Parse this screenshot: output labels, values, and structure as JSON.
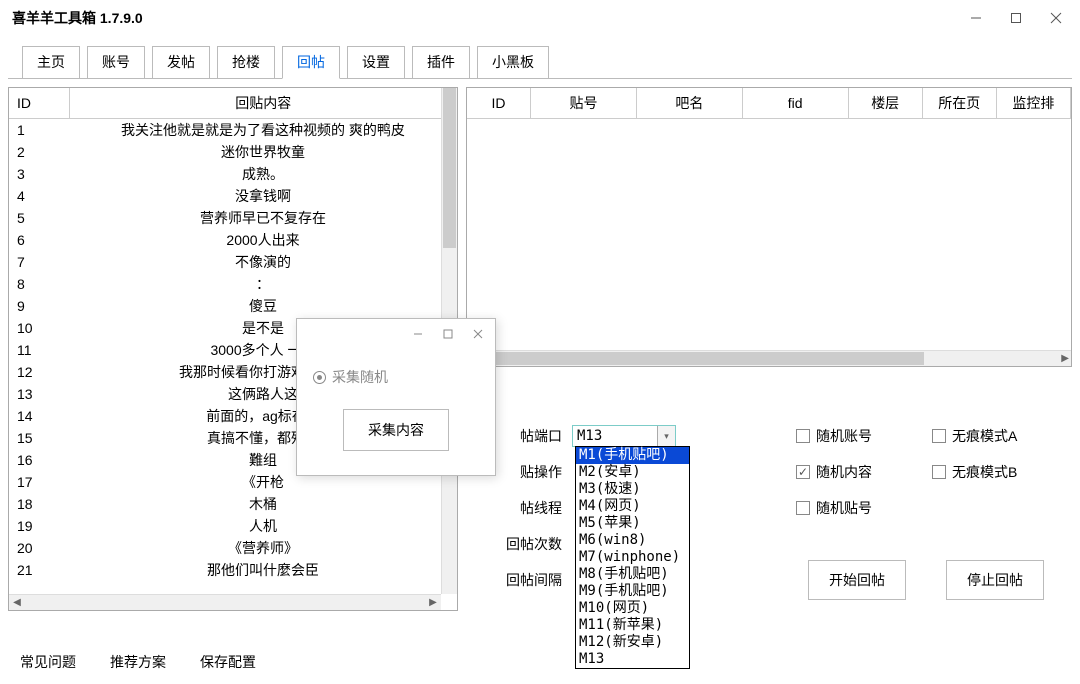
{
  "window": {
    "title": "喜羊羊工具箱 1.7.9.0"
  },
  "tabs": {
    "items": [
      {
        "label": "主页"
      },
      {
        "label": "账号"
      },
      {
        "label": "发帖"
      },
      {
        "label": "抢楼"
      },
      {
        "label": "回帖"
      },
      {
        "label": "设置"
      },
      {
        "label": "插件"
      },
      {
        "label": "小黑板"
      }
    ],
    "active_index": 4
  },
  "left_table": {
    "headers": {
      "id": "ID",
      "content": "回贴内容"
    },
    "rows": [
      {
        "id": "1",
        "content": "我关注他就是就是为了看这种视频的 爽的鸭皮"
      },
      {
        "id": "2",
        "content": "迷你世界牧童"
      },
      {
        "id": "3",
        "content": "成熟。"
      },
      {
        "id": "4",
        "content": "没拿钱啊"
      },
      {
        "id": "5",
        "content": "营养师早已不复存在"
      },
      {
        "id": "6",
        "content": "2000人出来"
      },
      {
        "id": "7",
        "content": "不像演的"
      },
      {
        "id": "8",
        "content": "："
      },
      {
        "id": "9",
        "content": "傻豆"
      },
      {
        "id": "10",
        "content": "是不是"
      },
      {
        "id": "11",
        "content": "3000多个人 一个"
      },
      {
        "id": "12",
        "content": "我那时候看你打游戏，一把"
      },
      {
        "id": "13",
        "content": "这俩路人这"
      },
      {
        "id": "14",
        "content": "前面的，ag标在赛"
      },
      {
        "id": "15",
        "content": "真搞不懂，都歼灭"
      },
      {
        "id": "16",
        "content": "難组"
      },
      {
        "id": "17",
        "content": "《开枪"
      },
      {
        "id": "18",
        "content": "木桶"
      },
      {
        "id": "19",
        "content": "人机"
      },
      {
        "id": "20",
        "content": "《营养师》"
      },
      {
        "id": "21",
        "content": "那他们叫什麼会臣"
      }
    ]
  },
  "right_table": {
    "headers": [
      "ID",
      "贴号",
      "吧名",
      "fid",
      "楼层",
      "所在页",
      "监控排"
    ]
  },
  "popup": {
    "radio_label": "采集随机",
    "button_label": "采集内容"
  },
  "form": {
    "labels": {
      "port": "帖端口",
      "op": "贴操作",
      "thread": "帖线程",
      "count": "回帖次数",
      "interval": "回帖间隔"
    },
    "combo_value": "M13",
    "checkboxes": {
      "rand_account": "随机账号",
      "rand_content": "随机内容",
      "rand_tieno": "随机贴号",
      "trace_a": "无痕模式A",
      "trace_b": "无痕模式B"
    },
    "buttons": {
      "start": "开始回帖",
      "stop": "停止回帖"
    }
  },
  "dropdown": {
    "items": [
      "M1(手机贴吧)",
      "M2(安卓)",
      "M3(极速)",
      "M4(网页)",
      "M5(苹果)",
      "M6(win8)",
      "M7(winphone)",
      "M8(手机贴吧)",
      "M9(手机贴吧)",
      "M10(网页)",
      "M11(新苹果)",
      "M12(新安卓)",
      "M13"
    ],
    "selected_index": 0
  },
  "footer": {
    "links": [
      "常见问题",
      "推荐方案",
      "保存配置"
    ]
  }
}
